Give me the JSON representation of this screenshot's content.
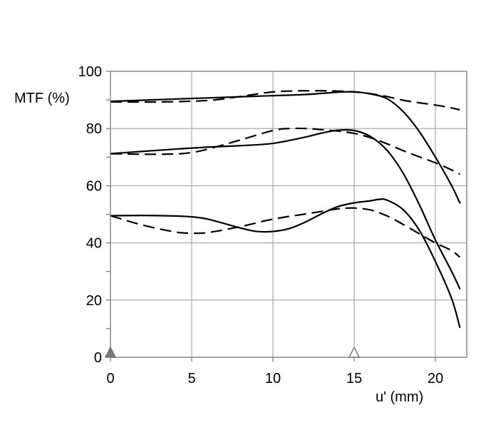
{
  "chart_data": {
    "type": "line",
    "title": "",
    "xlabel": "u' (mm)",
    "ylabel": "MTF (%)",
    "xlim": [
      0,
      22
    ],
    "ylim": [
      0,
      100
    ],
    "x_ticks": [
      0,
      5,
      10,
      15,
      20
    ],
    "y_ticks": [
      0,
      20,
      40,
      60,
      80,
      100
    ],
    "x_tick_labels": [
      "0",
      "5",
      "10",
      "15",
      "20"
    ],
    "y_tick_labels": [
      "0",
      "20",
      "40",
      "60",
      "80",
      "100"
    ],
    "grid": true,
    "markers": [
      {
        "x": 0,
        "y": 0,
        "shape": "triangle",
        "filled": true,
        "color": "#777777"
      },
      {
        "x": 15,
        "y": 0,
        "shape": "triangle",
        "filled": false,
        "color": "#777777"
      }
    ],
    "series": [
      {
        "style": "solid",
        "x": [
          0,
          3,
          6,
          9,
          12,
          14,
          15,
          16,
          17,
          18,
          19,
          20,
          21,
          21.5
        ],
        "y": [
          89.5,
          90.1,
          90.7,
          91.3,
          91.9,
          92.7,
          92.8,
          92.1,
          90.5,
          86,
          79,
          70,
          60,
          54
        ]
      },
      {
        "style": "dashed",
        "x": [
          0,
          3,
          6,
          8,
          10,
          12,
          14,
          15,
          16,
          17,
          18,
          19,
          20,
          21,
          21.5
        ],
        "y": [
          89.3,
          89.3,
          89.8,
          91.2,
          92.8,
          93.2,
          93.1,
          92.8,
          92.2,
          91.2,
          89.9,
          89,
          88.2,
          87.2,
          86.5
        ]
      },
      {
        "style": "solid",
        "x": [
          0,
          2,
          4,
          6,
          8,
          10,
          12,
          13,
          14,
          15,
          16,
          17,
          18,
          19,
          20,
          21,
          21.5
        ],
        "y": [
          71.2,
          72,
          72.8,
          73.5,
          74,
          74.8,
          77,
          78.4,
          79.4,
          79.3,
          77.2,
          72.5,
          64.5,
          53.5,
          41,
          30,
          24
        ]
      },
      {
        "style": "dashed",
        "x": [
          0,
          2,
          4,
          5,
          6,
          8,
          10,
          11,
          12,
          13,
          14,
          15,
          16,
          17,
          18,
          19,
          20,
          21,
          21.5
        ],
        "y": [
          71.2,
          71,
          71.1,
          71.6,
          72.8,
          76,
          79.3,
          80,
          80,
          79.6,
          79.1,
          78.3,
          76.8,
          74.7,
          72.3,
          70.1,
          68,
          65.5,
          64
        ]
      },
      {
        "style": "solid",
        "x": [
          0,
          2,
          4,
          5,
          6,
          8,
          9,
          10,
          11,
          12,
          13,
          14,
          15,
          16,
          16.5,
          17,
          18,
          19,
          20,
          21,
          21.5
        ],
        "y": [
          49.5,
          49.6,
          49.4,
          49.1,
          48.3,
          45.2,
          44,
          44,
          45,
          47.3,
          50.2,
          52.7,
          54,
          54.7,
          55.2,
          55,
          51.7,
          44.5,
          33.5,
          20.5,
          10.5
        ]
      },
      {
        "style": "dashed",
        "x": [
          0,
          2,
          4,
          5,
          6,
          8,
          10,
          12,
          13,
          14,
          15,
          16,
          17,
          18,
          19,
          20,
          21,
          21.5
        ],
        "y": [
          49.5,
          46.2,
          43.8,
          43.4,
          43.6,
          45.7,
          48.3,
          50.1,
          51,
          51.9,
          52.2,
          51.5,
          49.5,
          46.5,
          43.2,
          40,
          37.3,
          35
        ]
      }
    ]
  }
}
